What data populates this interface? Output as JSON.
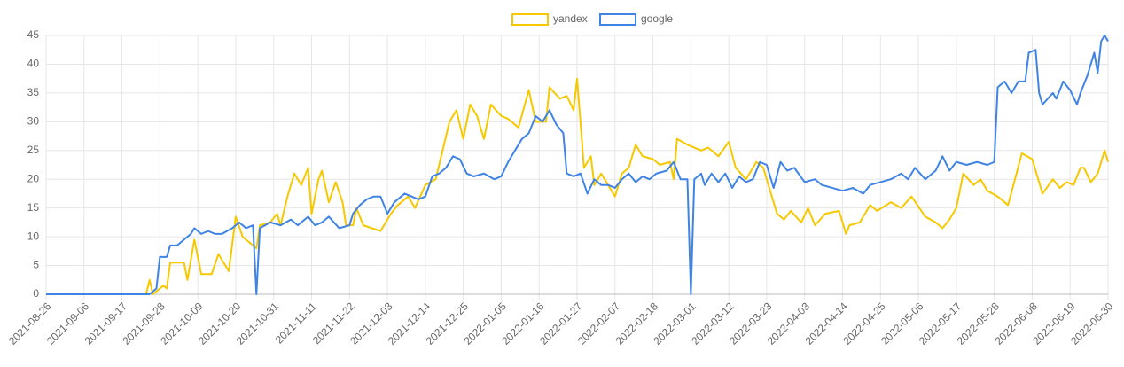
{
  "chart_data": {
    "type": "line",
    "legend": "top",
    "grid": true,
    "xlim": [
      "2021-08-26",
      "2022-06-30"
    ],
    "xticks": [
      "2021-08-26",
      "2021-09-06",
      "2021-09-17",
      "2021-09-28",
      "2021-10-09",
      "2021-10-20",
      "2021-10-31",
      "2021-11-11",
      "2021-11-22",
      "2021-12-03",
      "2021-12-14",
      "2021-12-25",
      "2022-01-05",
      "2022-01-16",
      "2022-01-27",
      "2022-02-07",
      "2022-02-18",
      "2022-03-01",
      "2022-03-12",
      "2022-03-23",
      "2022-04-03",
      "2022-04-14",
      "2022-04-25",
      "2022-05-06",
      "2022-05-17",
      "2022-05-28",
      "2022-06-08",
      "2022-06-19",
      "2022-06-30"
    ],
    "ylim": [
      0,
      45
    ],
    "yticks": [
      0,
      5,
      10,
      15,
      20,
      25,
      30,
      35,
      40,
      45
    ],
    "series": [
      {
        "name": "yandex",
        "color": "#f7c800",
        "x": [
          "2021-08-26",
          "2021-09-24",
          "2021-09-25",
          "2021-09-26",
          "2021-09-28",
          "2021-09-29",
          "2021-09-30",
          "2021-10-01",
          "2021-10-05",
          "2021-10-06",
          "2021-10-08",
          "2021-10-10",
          "2021-10-13",
          "2021-10-15",
          "2021-10-18",
          "2021-10-20",
          "2021-10-22",
          "2021-10-26",
          "2021-10-27",
          "2021-10-30",
          "2021-11-01",
          "2021-11-02",
          "2021-11-04",
          "2021-11-06",
          "2021-11-08",
          "2021-11-10",
          "2021-11-11",
          "2021-11-13",
          "2021-11-14",
          "2021-11-16",
          "2021-11-18",
          "2021-11-20",
          "2021-11-21",
          "2021-11-23",
          "2021-11-24",
          "2021-11-26",
          "2021-12-01",
          "2021-12-04",
          "2021-12-06",
          "2021-12-09",
          "2021-12-11",
          "2021-12-14",
          "2021-12-17",
          "2021-12-19",
          "2021-12-21",
          "2021-12-23",
          "2021-12-25",
          "2021-12-27",
          "2021-12-29",
          "2021-12-31",
          "2022-01-02",
          "2022-01-05",
          "2022-01-07",
          "2022-01-10",
          "2022-01-13",
          "2022-01-15",
          "2022-01-18",
          "2022-01-19",
          "2022-01-22",
          "2022-01-24",
          "2022-01-26",
          "2022-01-27",
          "2022-01-29",
          "2022-01-31",
          "2022-02-01",
          "2022-02-03",
          "2022-02-07",
          "2022-02-09",
          "2022-02-11",
          "2022-02-13",
          "2022-02-15",
          "2022-02-18",
          "2022-02-20",
          "2022-02-23",
          "2022-02-24",
          "2022-02-25",
          "2022-02-28",
          "2022-03-04",
          "2022-03-06",
          "2022-03-09",
          "2022-03-12",
          "2022-03-14",
          "2022-03-17",
          "2022-03-20",
          "2022-03-22",
          "2022-03-26",
          "2022-03-28",
          "2022-03-30",
          "2022-04-02",
          "2022-04-04",
          "2022-04-06",
          "2022-04-09",
          "2022-04-13",
          "2022-04-15",
          "2022-04-16",
          "2022-04-19",
          "2022-04-22",
          "2022-04-24",
          "2022-04-28",
          "2022-05-01",
          "2022-05-04",
          "2022-05-08",
          "2022-05-11",
          "2022-05-13",
          "2022-05-15",
          "2022-05-17",
          "2022-05-19",
          "2022-05-22",
          "2022-05-24",
          "2022-05-26",
          "2022-05-29",
          "2022-06-01",
          "2022-06-03",
          "2022-06-05",
          "2022-06-08",
          "2022-06-11",
          "2022-06-14",
          "2022-06-16",
          "2022-06-18",
          "2022-06-20",
          "2022-06-22",
          "2022-06-23",
          "2022-06-25",
          "2022-06-27",
          "2022-06-29",
          "2022-06-30"
        ],
        "values": [
          0,
          0,
          2.5,
          0,
          1,
          1.5,
          1,
          5.5,
          5.5,
          2.5,
          9.5,
          3.5,
          3.5,
          7,
          4,
          13.5,
          10,
          8,
          12,
          12.5,
          14,
          12,
          17,
          21,
          19,
          22,
          14,
          20,
          21.5,
          16,
          19.5,
          16,
          12,
          12,
          15,
          12,
          11,
          14,
          15.5,
          17,
          15,
          19,
          20,
          25,
          30,
          32,
          27,
          33,
          31,
          27,
          33,
          31,
          30.5,
          29,
          35.5,
          30,
          30,
          36,
          34,
          34.5,
          32,
          37.5,
          22,
          24,
          19,
          21,
          17,
          21,
          22,
          26,
          24,
          23.5,
          22.5,
          23,
          20,
          27,
          26,
          25,
          25.5,
          24,
          26.5,
          22,
          20,
          23,
          22,
          14,
          13,
          14.5,
          12.5,
          15,
          12,
          14,
          14.5,
          10.5,
          12,
          12.5,
          15.5,
          14.5,
          16,
          15,
          17,
          13.5,
          12.5,
          11.5,
          13,
          15,
          21,
          19,
          20,
          18,
          17,
          15.5,
          20,
          24.5,
          23.5,
          17.5,
          20,
          18.5,
          19.5,
          19,
          22,
          22,
          19.5,
          21,
          25,
          23
        ]
      },
      {
        "name": "google",
        "color": "#3f84e5",
        "x": [
          "2021-08-26",
          "2021-09-25",
          "2021-09-27",
          "2021-09-28",
          "2021-09-30",
          "2021-10-01",
          "2021-10-03",
          "2021-10-05",
          "2021-10-07",
          "2021-10-08",
          "2021-10-10",
          "2021-10-12",
          "2021-10-14",
          "2021-10-16",
          "2021-10-19",
          "2021-10-21",
          "2021-10-23",
          "2021-10-25",
          "2021-10-26",
          "2021-10-27",
          "2021-10-30",
          "2021-11-02",
          "2021-11-05",
          "2021-11-07",
          "2021-11-10",
          "2021-11-12",
          "2021-11-14",
          "2021-11-16",
          "2021-11-19",
          "2021-11-22",
          "2021-11-23",
          "2021-11-25",
          "2021-11-27",
          "2021-11-29",
          "2021-12-01",
          "2021-12-03",
          "2021-12-05",
          "2021-12-08",
          "2021-12-10",
          "2021-12-12",
          "2021-12-14",
          "2021-12-16",
          "2021-12-18",
          "2021-12-20",
          "2021-12-22",
          "2021-12-24",
          "2021-12-26",
          "2021-12-28",
          "2021-12-31",
          "2022-01-03",
          "2022-01-05",
          "2022-01-07",
          "2022-01-09",
          "2022-01-11",
          "2022-01-13",
          "2022-01-15",
          "2022-01-17",
          "2022-01-19",
          "2022-01-21",
          "2022-01-23",
          "2022-01-24",
          "2022-01-26",
          "2022-01-28",
          "2022-01-30",
          "2022-02-01",
          "2022-02-03",
          "2022-02-05",
          "2022-02-07",
          "2022-02-09",
          "2022-02-11",
          "2022-02-13",
          "2022-02-15",
          "2022-02-17",
          "2022-02-19",
          "2022-02-22",
          "2022-02-24",
          "2022-02-26",
          "2022-02-28",
          "2022-03-01",
          "2022-03-02",
          "2022-03-04",
          "2022-03-05",
          "2022-03-07",
          "2022-03-09",
          "2022-03-11",
          "2022-03-13",
          "2022-03-15",
          "2022-03-17",
          "2022-03-19",
          "2022-03-21",
          "2022-03-23",
          "2022-03-25",
          "2022-03-27",
          "2022-03-29",
          "2022-03-31",
          "2022-04-03",
          "2022-04-06",
          "2022-04-08",
          "2022-04-11",
          "2022-04-14",
          "2022-04-17",
          "2022-04-20",
          "2022-04-22",
          "2022-04-25",
          "2022-04-28",
          "2022-05-01",
          "2022-05-03",
          "2022-05-05",
          "2022-05-08",
          "2022-05-11",
          "2022-05-13",
          "2022-05-15",
          "2022-05-17",
          "2022-05-20",
          "2022-05-23",
          "2022-05-26",
          "2022-05-28",
          "2022-05-29",
          "2022-05-31",
          "2022-06-02",
          "2022-06-04",
          "2022-06-06",
          "2022-06-07",
          "2022-06-09",
          "2022-06-10",
          "2022-06-11",
          "2022-06-14",
          "2022-06-15",
          "2022-06-17",
          "2022-06-19",
          "2022-06-21",
          "2022-06-22",
          "2022-06-24",
          "2022-06-26",
          "2022-06-27",
          "2022-06-28",
          "2022-06-29",
          "2022-06-30"
        ],
        "values": [
          0,
          0,
          1,
          6.5,
          6.5,
          8.5,
          8.5,
          9.5,
          10.5,
          11.5,
          10.5,
          11,
          10.5,
          10.5,
          11.5,
          12.5,
          11.5,
          12,
          0,
          11.5,
          12.5,
          12,
          13,
          12,
          13.5,
          12,
          12.5,
          13.5,
          11.5,
          12,
          14,
          15.5,
          16.5,
          17,
          17,
          14,
          16,
          17.5,
          17,
          16.5,
          17,
          20.5,
          21,
          22,
          24,
          23.5,
          21,
          20.5,
          21,
          20,
          20.5,
          23,
          25,
          27,
          28,
          31,
          30,
          32,
          29.5,
          28,
          21,
          20.5,
          21,
          17.5,
          20,
          19,
          19,
          18.5,
          20,
          21,
          19.5,
          20.5,
          20,
          21,
          21.5,
          23,
          20,
          20,
          0,
          20,
          21,
          19,
          21,
          19.5,
          21,
          18.5,
          20.5,
          19.5,
          20,
          23,
          22.5,
          18.5,
          23,
          21.5,
          22,
          19.5,
          20,
          19,
          18.5,
          18,
          18.5,
          17.5,
          19,
          19.5,
          20,
          21,
          20,
          22,
          20,
          21.5,
          24,
          21.5,
          23,
          22.5,
          23,
          22.5,
          23,
          36,
          37,
          35,
          37,
          37,
          42,
          42.5,
          35,
          33,
          35,
          34,
          37,
          35.5,
          33,
          35,
          38,
          42,
          38.5,
          44,
          45,
          44
        ]
      }
    ]
  }
}
